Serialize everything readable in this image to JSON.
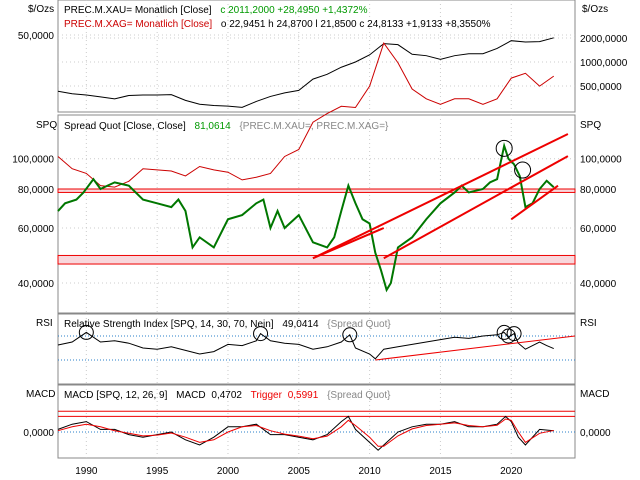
{
  "chart_data": [
    {
      "type": "line",
      "panel": "price",
      "unit_left": "$/Ozs",
      "unit_right": "$/Ozs",
      "legend": [
        {
          "text": "PREC.M.XAU= Monatlich [Close]",
          "values": "c 2011,2000  +28,4950  +1,4372%",
          "color": "#000000"
        },
        {
          "text": "PREC.M.XAG= Monatlich [Close]",
          "values": "o 22,9451  h 24,8700  l 21,8500  c 24,8133  +1,9133  +8,3550%",
          "color": "#cc0000"
        }
      ],
      "left_ticks": [
        "50,0000"
      ],
      "right_ticks": [
        "2000,0000",
        "1000,0000",
        "500,0000"
      ],
      "series": [
        {
          "name": "PREC.M.XAU=",
          "color": "#000000",
          "x": [
            1988,
            1989,
            1990,
            1991,
            1992,
            1993,
            1994,
            1995,
            1996,
            1997,
            1998,
            1999,
            2000,
            2001,
            2002,
            2003,
            2004,
            2005,
            2006,
            2007,
            2008,
            2009,
            2010,
            2011,
            2012,
            2013,
            2014,
            2015,
            2016,
            2017,
            2018,
            2019,
            2020,
            2021,
            2022,
            2023
          ],
          "values": [
            430,
            400,
            385,
            365,
            345,
            380,
            385,
            385,
            390,
            330,
            295,
            285,
            280,
            270,
            320,
            370,
            410,
            440,
            610,
            700,
            860,
            1000,
            1230,
            1700,
            1650,
            1250,
            1200,
            1080,
            1200,
            1270,
            1270,
            1480,
            1850,
            1780,
            1800,
            2011
          ]
        },
        {
          "name": "PREC.M.XAG=",
          "color": "#cc0000",
          "x": [
            1988,
            1989,
            1990,
            1991,
            1992,
            1993,
            1994,
            1995,
            1996,
            1997,
            1998,
            1999,
            2000,
            2001,
            2002,
            2003,
            2004,
            2005,
            2006,
            2007,
            2008,
            2009,
            2010,
            2011,
            2012,
            2013,
            2014,
            2015,
            2016,
            2017,
            2018,
            2019,
            2020,
            2021,
            2022,
            2023
          ],
          "values": [
            6.5,
            5.3,
            4.9,
            4.0,
            3.9,
            4.3,
            5.3,
            5.2,
            5.1,
            4.7,
            5.5,
            5.2,
            5.0,
            4.4,
            4.6,
            4.9,
            6.5,
            7.3,
            11.5,
            13.3,
            15.0,
            14.7,
            21,
            43,
            31,
            20,
            17,
            15.5,
            17,
            17,
            15.5,
            17,
            24,
            26,
            21,
            24.8
          ]
        }
      ]
    },
    {
      "type": "line",
      "panel": "spread",
      "unit_left": "SPQ",
      "unit_right": "SPQ",
      "legend": {
        "text": "Spread Quot  [Close, Close]",
        "value": "81,0614",
        "source": "{PREC.M.XAU=, PREC.M.XAG=}"
      },
      "left_ticks": [
        "100,0000",
        "80,0000",
        "60,0000",
        "40,0000"
      ],
      "right_ticks": [
        "100,0000",
        "80,0000",
        "60,0000",
        "40,0000"
      ],
      "ylim": [
        30,
        120
      ],
      "colors": {
        "line": "#007700",
        "channel": "#ee0000",
        "band_fill": "#f8d7dc"
      },
      "horizontal_bands": [
        [
          78,
          80
        ],
        [
          46,
          49
        ]
      ],
      "series": [
        {
          "name": "Spread Quot",
          "x": [
            1988,
            1988.5,
            1989.3,
            1989.8,
            1990.5,
            1991,
            1991.5,
            1992,
            1993,
            1994,
            1995,
            1996,
            1996.5,
            1997,
            1997.5,
            1998,
            1999,
            2000,
            2001,
            2002,
            2002.5,
            2003,
            2003.5,
            2004,
            2005,
            2006,
            2007,
            2007.5,
            2008,
            2008.5,
            2009,
            2009.5,
            2010,
            2010.4,
            2010.8,
            2011.2,
            2011.5,
            2012,
            2013,
            2014,
            2015,
            2016,
            2016.5,
            2017,
            2018,
            2018.5,
            2019,
            2019.5,
            2019.8,
            2020.2,
            2020.6,
            2021,
            2021.5,
            2022,
            2022.5,
            2023
          ],
          "values": [
            68,
            72,
            74,
            78,
            86,
            80,
            82,
            84,
            82,
            74,
            72,
            70,
            74,
            68,
            52,
            56,
            52,
            64,
            66,
            72,
            74,
            60,
            68,
            60,
            66,
            54,
            52,
            56,
            68,
            82,
            72,
            64,
            62,
            50,
            44,
            38,
            40,
            52,
            56,
            64,
            72,
            78,
            82,
            78,
            80,
            84,
            86,
            110,
            100,
            96,
            88,
            70,
            72,
            80,
            85,
            81.06
          ]
        }
      ],
      "annotations": [
        {
          "type": "channel",
          "count": 2
        },
        {
          "type": "trendline",
          "count": 1
        },
        {
          "type": "circle",
          "count": 2
        }
      ]
    },
    {
      "type": "line",
      "panel": "rsi",
      "unit_left": "RSI",
      "unit_right": "RSI",
      "legend": {
        "text": "Relative Strength Index  [SPQ, 14, 30, 70, Nein]",
        "value": "49,0414",
        "source": "{Spread Quot}"
      },
      "ylim": [
        0,
        100
      ],
      "levels": [
        70,
        30
      ],
      "series": [
        {
          "name": "RSI",
          "x": [
            1988,
            1989,
            1989.5,
            1990,
            1991,
            1992,
            1993,
            1994,
            1995,
            1996,
            1997,
            1998,
            1999,
            2000,
            2001,
            2002,
            2002.3,
            2003,
            2004,
            2005,
            2006,
            2007,
            2008,
            2008.6,
            2009,
            2010,
            2010.4,
            2011,
            2012,
            2013,
            2014,
            2015,
            2016,
            2017,
            2018,
            2019,
            2019.5,
            2019.8,
            2020.2,
            2020.5,
            2021,
            2022,
            2022.5,
            2023
          ],
          "values": [
            55,
            60,
            68,
            76,
            60,
            62,
            58,
            50,
            48,
            52,
            46,
            40,
            44,
            56,
            54,
            62,
            74,
            62,
            58,
            56,
            48,
            52,
            60,
            72,
            50,
            40,
            32,
            48,
            52,
            56,
            60,
            64,
            68,
            66,
            70,
            72,
            76,
            68,
            74,
            58,
            48,
            60,
            54,
            49.04
          ]
        }
      ],
      "annotations": [
        {
          "type": "circle",
          "count": 6
        },
        {
          "type": "trendline",
          "count": 1
        }
      ]
    },
    {
      "type": "line",
      "panel": "macd",
      "unit_left": "MACD",
      "unit_right": "MACD",
      "legend": {
        "text": "MACD  [SPQ, 12, 26, 9]",
        "macd_label": "MACD",
        "macd_value": "0,4702",
        "trigger_label": "Trigger",
        "trigger_value": "0,5991",
        "source": "{Spread Quot}"
      },
      "left_ticks": [
        "0,0000"
      ],
      "right_ticks": [
        "0,0000"
      ],
      "x_ticks": [
        "1990",
        "1995",
        "2000",
        "2005",
        "2010",
        "2015",
        "2020"
      ],
      "ylim": [
        -10,
        10
      ],
      "series": [
        {
          "name": "MACD",
          "color": "#000000",
          "x": [
            1988,
            1989,
            1990,
            1991,
            1992,
            1993,
            1994,
            1995,
            1996,
            1997,
            1998,
            1999,
            2000,
            2001,
            2002,
            2003,
            2004,
            2005,
            2006,
            2007,
            2008,
            2008.5,
            2009,
            2010,
            2010.6,
            2011,
            2012,
            2013,
            2014,
            2015,
            2016,
            2017,
            2018,
            2019,
            2019.6,
            2020,
            2020.5,
            2021,
            2022,
            2023
          ],
          "values": [
            1,
            3,
            4,
            1,
            1,
            -1,
            -2,
            -1,
            0,
            -3,
            -5,
            -2,
            2,
            2,
            3,
            -1,
            -1,
            -2,
            -3,
            -1,
            4,
            6,
            1,
            -4,
            -7,
            -5,
            0,
            2,
            3,
            3,
            4,
            2,
            2,
            3,
            6,
            4,
            -2,
            -5,
            1,
            0.47
          ]
        },
        {
          "name": "Trigger",
          "color": "#ee0000",
          "x": [
            1988,
            1989,
            1990,
            1991,
            1992,
            1993,
            1994,
            1995,
            1996,
            1997,
            1998,
            1999,
            2000,
            2001,
            2002,
            2003,
            2004,
            2005,
            2006,
            2007,
            2008,
            2008.5,
            2009,
            2010,
            2010.6,
            2011,
            2012,
            2013,
            2014,
            2015,
            2016,
            2017,
            2018,
            2019,
            2019.6,
            2020,
            2020.5,
            2021,
            2022,
            2023
          ],
          "values": [
            0.5,
            2,
            3,
            2,
            0.5,
            -0.5,
            -1.5,
            -1.2,
            -0.4,
            -2,
            -4,
            -3,
            0,
            2,
            2.5,
            0.5,
            -0.8,
            -1.6,
            -2.6,
            -1.6,
            2,
            4.5,
            2.5,
            -2,
            -5.5,
            -5.5,
            -1.5,
            1.2,
            2.5,
            3,
            3.5,
            2.5,
            2,
            2.6,
            5,
            4.5,
            0,
            -4,
            -0.5,
            0.6
          ]
        }
      ]
    }
  ]
}
